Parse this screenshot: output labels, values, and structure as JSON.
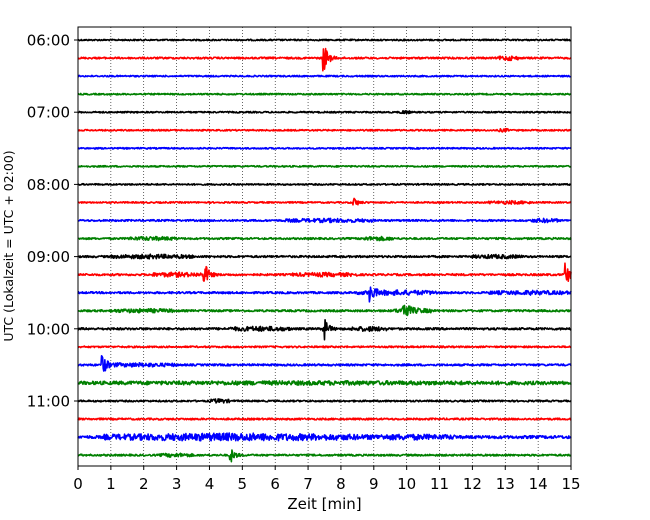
{
  "chart_data": {
    "type": "line",
    "chart_kind": "helicorder",
    "title": "",
    "xlabel": "Zeit  [min]",
    "ylabel": "UTC (Lokalzeit = UTC + 02:00)",
    "xlim": [
      0,
      15
    ],
    "x_ticks": [
      "0",
      "1",
      "2",
      "3",
      "4",
      "5",
      "6",
      "7",
      "8",
      "9",
      "10",
      "11",
      "12",
      "13",
      "14",
      "15"
    ],
    "y_ticks": [
      "06:00",
      "07:00",
      "08:00",
      "09:00",
      "10:00",
      "11:00"
    ],
    "grid": "vertical dotted",
    "trace_interval_min": 15,
    "trace_colors": [
      "#000000",
      "#ff0000",
      "#0000ff",
      "#008000"
    ],
    "series": [
      {
        "start": "06:00",
        "noise": 0.45,
        "events": [],
        "bursts": []
      },
      {
        "start": "06:15",
        "noise": 0.55,
        "events": [
          {
            "t": 7.5,
            "amp": 2.6
          }
        ],
        "bursts": [
          {
            "t0": 12.8,
            "t1": 13.4,
            "amp": 1.1
          }
        ]
      },
      {
        "start": "06:30",
        "noise": 0.45,
        "events": [],
        "bursts": []
      },
      {
        "start": "06:45",
        "noise": 0.45,
        "events": [],
        "bursts": []
      },
      {
        "start": "07:00",
        "noise": 0.45,
        "events": [],
        "bursts": [
          {
            "t0": 9.8,
            "t1": 10.1,
            "amp": 0.8
          }
        ]
      },
      {
        "start": "07:15",
        "noise": 0.45,
        "events": [],
        "bursts": [
          {
            "t0": 12.8,
            "t1": 13.1,
            "amp": 0.8
          }
        ]
      },
      {
        "start": "07:30",
        "noise": 0.45,
        "events": [],
        "bursts": []
      },
      {
        "start": "07:45",
        "noise": 0.45,
        "events": [],
        "bursts": []
      },
      {
        "start": "08:00",
        "noise": 0.45,
        "events": [],
        "bursts": []
      },
      {
        "start": "08:15",
        "noise": 0.45,
        "events": [
          {
            "t": 8.4,
            "amp": 0.9
          }
        ],
        "bursts": [
          {
            "t0": 12.5,
            "t1": 13.8,
            "amp": 0.7
          }
        ]
      },
      {
        "start": "08:30",
        "noise": 0.55,
        "events": [],
        "bursts": [
          {
            "t0": 6.3,
            "t1": 9.0,
            "amp": 0.8
          },
          {
            "t0": 13.8,
            "t1": 14.6,
            "amp": 0.9
          }
        ]
      },
      {
        "start": "08:45",
        "noise": 0.55,
        "events": [],
        "bursts": [
          {
            "t0": 1.5,
            "t1": 3.0,
            "amp": 0.8
          },
          {
            "t0": 8.6,
            "t1": 9.6,
            "amp": 0.9
          }
        ]
      },
      {
        "start": "09:00",
        "noise": 0.6,
        "events": [],
        "bursts": [
          {
            "t0": 1.0,
            "t1": 3.5,
            "amp": 0.9
          },
          {
            "t0": 12.0,
            "t1": 13.5,
            "amp": 0.8
          }
        ]
      },
      {
        "start": "09:15",
        "noise": 0.6,
        "events": [
          {
            "t": 3.85,
            "amp": 2.4
          },
          {
            "t": 14.85,
            "amp": 2.2
          }
        ],
        "bursts": [
          {
            "t0": 2.2,
            "t1": 3.8,
            "amp": 1.0
          },
          {
            "t0": 6.5,
            "t1": 8.5,
            "amp": 0.8
          }
        ]
      },
      {
        "start": "09:30",
        "noise": 0.6,
        "events": [
          {
            "t": 8.9,
            "amp": 1.6
          }
        ],
        "bursts": [
          {
            "t0": 8.5,
            "t1": 11.0,
            "amp": 1.1
          },
          {
            "t0": 12.5,
            "t1": 15.0,
            "amp": 0.9
          }
        ]
      },
      {
        "start": "09:45",
        "noise": 0.6,
        "events": [
          {
            "t": 9.9,
            "amp": 2.2
          }
        ],
        "bursts": [
          {
            "t0": 9.6,
            "t1": 10.8,
            "amp": 1.1
          },
          {
            "t0": 1.0,
            "t1": 3.0,
            "amp": 0.8
          }
        ]
      },
      {
        "start": "10:00",
        "noise": 0.65,
        "events": [
          {
            "t": 7.5,
            "amp": 2.0
          }
        ],
        "bursts": [
          {
            "t0": 4.6,
            "t1": 6.5,
            "amp": 1.0
          },
          {
            "t0": 8.3,
            "t1": 9.4,
            "amp": 1.0
          }
        ]
      },
      {
        "start": "10:15",
        "noise": 0.5,
        "events": [],
        "bursts": []
      },
      {
        "start": "10:30",
        "noise": 0.6,
        "events": [
          {
            "t": 0.75,
            "amp": 1.8
          }
        ],
        "bursts": [
          {
            "t0": 0.7,
            "t1": 3.0,
            "amp": 0.8
          }
        ]
      },
      {
        "start": "10:45",
        "noise": 0.65,
        "events": [],
        "bursts": [
          {
            "t0": 0.0,
            "t1": 15.0,
            "amp": 0.75
          }
        ]
      },
      {
        "start": "11:00",
        "noise": 0.5,
        "events": [],
        "bursts": [
          {
            "t0": 4.0,
            "t1": 4.6,
            "amp": 1.0
          }
        ]
      },
      {
        "start": "11:15",
        "noise": 0.55,
        "events": [],
        "bursts": []
      },
      {
        "start": "11:30",
        "noise": 0.9,
        "events": [],
        "bursts": [
          {
            "t0": 0.8,
            "t1": 8.5,
            "amp": 1.7
          },
          {
            "t0": 8.5,
            "t1": 11.5,
            "amp": 1.0
          }
        ]
      },
      {
        "start": "11:45",
        "noise": 0.55,
        "events": [
          {
            "t": 4.65,
            "amp": 1.4
          }
        ],
        "bursts": [
          {
            "t0": 2.5,
            "t1": 3.5,
            "amp": 0.8
          }
        ]
      }
    ]
  }
}
